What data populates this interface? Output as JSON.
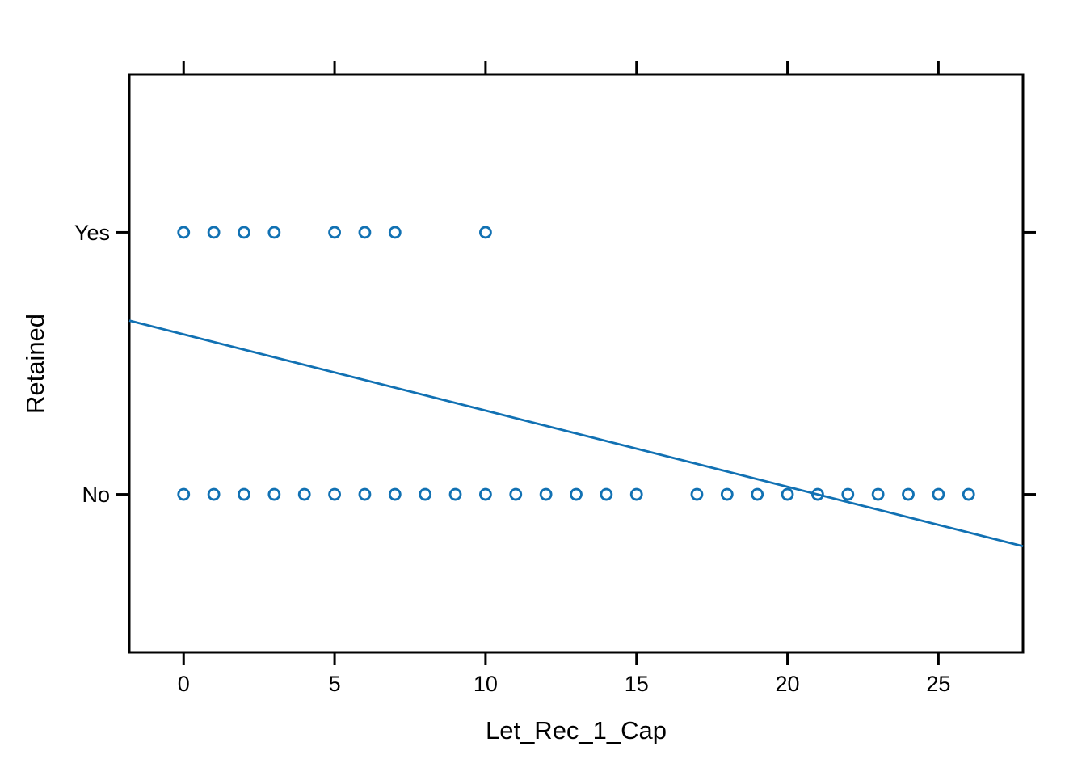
{
  "chart_data": {
    "type": "scatter",
    "title": "",
    "xlabel": "Let_Rec_1_Cap",
    "ylabel": "Retained",
    "x_domain": [
      -1.8,
      27.8
    ],
    "y_domain": [
      -0.603,
      1.603
    ],
    "grid": false,
    "legend": null,
    "x_ticks": [
      {
        "value": 0,
        "label": "0"
      },
      {
        "value": 5,
        "label": "5"
      },
      {
        "value": 10,
        "label": "10"
      },
      {
        "value": 15,
        "label": "15"
      },
      {
        "value": 20,
        "label": "20"
      },
      {
        "value": 25,
        "label": "25"
      }
    ],
    "y_ticks": [
      {
        "value": 1,
        "label": "Yes"
      },
      {
        "value": 0,
        "label": "No"
      }
    ],
    "series": [
      {
        "name": "Yes",
        "y_value": 1,
        "x": [
          0,
          1,
          2,
          3,
          5,
          6,
          7,
          10
        ]
      },
      {
        "name": "No",
        "y_value": 0,
        "x": [
          0,
          1,
          2,
          3,
          4,
          5,
          6,
          7,
          8,
          9,
          10,
          11,
          12,
          13,
          14,
          15,
          17,
          18,
          19,
          20,
          21,
          22,
          23,
          24,
          25,
          26
        ]
      }
    ],
    "fit_line": {
      "type": "linear-fit",
      "slope": -0.0291,
      "intercept": 0.611,
      "x": [
        -1.8,
        27.8
      ],
      "y": [
        0.663,
        -0.198
      ]
    },
    "point_color": "#1171B3",
    "line_color": "#1171B3",
    "axis_color": "#000000"
  }
}
